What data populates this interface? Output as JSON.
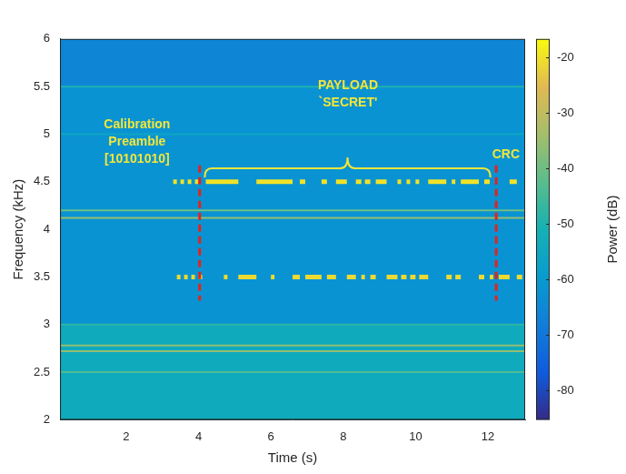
{
  "chart_data": {
    "type": "spectrogram",
    "x_label": "Time (s)",
    "y_label": "Frequency (kHz)",
    "xlim": [
      0.17,
      13.03
    ],
    "xticks": [
      2,
      4,
      6,
      8,
      10,
      12
    ],
    "ylim": [
      2,
      6
    ],
    "yticks": [
      2,
      2.5,
      3,
      3.5,
      4,
      4.5,
      5,
      5.5,
      6
    ],
    "grid": false,
    "colorbar": {
      "label": "Power (dB)",
      "range": [
        -85.3,
        -16.7
      ],
      "ticks": [
        -80,
        -70,
        -60,
        -50,
        -40,
        -30,
        -20
      ]
    },
    "background": [
      {
        "from": 2,
        "to": 3,
        "power": -54
      },
      {
        "from": 3,
        "to": 5.5,
        "power": -62
      },
      {
        "from": 5.5,
        "to": 6,
        "power": -66
      }
    ],
    "tones": [
      {
        "frequency": 5.5,
        "power": -50,
        "segments": [
          [
            0.17,
            13.03
          ]
        ]
      },
      {
        "frequency": 5.0,
        "power": -56,
        "segments": [
          [
            0.17,
            13.03
          ]
        ]
      },
      {
        "frequency": 4.2,
        "power": -40,
        "segments": [
          [
            0.17,
            13.03
          ]
        ]
      },
      {
        "frequency": 4.12,
        "power": -36,
        "segments": [
          [
            0.17,
            13.03
          ]
        ]
      },
      {
        "frequency": 3.0,
        "power": -48,
        "segments": [
          [
            0.17,
            13.03
          ]
        ]
      },
      {
        "frequency": 2.78,
        "power": -36,
        "segments": [
          [
            0.17,
            13.03
          ]
        ]
      },
      {
        "frequency": 2.72,
        "power": -36,
        "segments": [
          [
            0.17,
            13.03
          ]
        ]
      },
      {
        "frequency": 2.5,
        "power": -44,
        "segments": [
          [
            0.17,
            13.03
          ]
        ]
      },
      {
        "frequency": 4.5,
        "power": -20,
        "segments": [
          [
            3.3,
            3.4
          ],
          [
            3.5,
            3.6
          ],
          [
            3.7,
            3.8
          ],
          [
            3.9,
            4.0
          ],
          [
            4.2,
            5.1
          ],
          [
            5.6,
            6.6
          ],
          [
            6.8,
            6.95
          ],
          [
            7.4,
            7.55
          ],
          [
            7.8,
            8.1
          ],
          [
            8.35,
            8.5
          ],
          [
            8.6,
            8.75
          ],
          [
            8.9,
            9.2
          ],
          [
            9.5,
            9.6
          ],
          [
            9.75,
            9.85
          ],
          [
            10.0,
            10.1
          ],
          [
            10.35,
            10.85
          ],
          [
            11.0,
            11.1
          ],
          [
            11.25,
            11.75
          ],
          [
            11.9,
            12.05
          ],
          [
            12.6,
            12.8
          ]
        ]
      },
      {
        "frequency": 3.5,
        "power": -21,
        "segments": [
          [
            3.4,
            3.5
          ],
          [
            3.6,
            3.7
          ],
          [
            3.8,
            3.9
          ],
          [
            4.0,
            4.1
          ],
          [
            4.7,
            4.8
          ],
          [
            5.1,
            5.6
          ],
          [
            6.0,
            6.1
          ],
          [
            6.6,
            6.8
          ],
          [
            6.95,
            7.4
          ],
          [
            7.55,
            7.8
          ],
          [
            8.1,
            8.35
          ],
          [
            8.5,
            8.6
          ],
          [
            8.75,
            8.9
          ],
          [
            9.2,
            9.5
          ],
          [
            9.6,
            9.75
          ],
          [
            9.85,
            10.0
          ],
          [
            10.1,
            10.35
          ],
          [
            10.85,
            11.0
          ],
          [
            11.1,
            11.25
          ],
          [
            11.75,
            11.9
          ],
          [
            12.05,
            12.15
          ],
          [
            12.3,
            12.6
          ],
          [
            12.8,
            12.95
          ]
        ]
      }
    ],
    "boundaries": {
      "x": [
        4.03,
        12.23
      ],
      "color": "#e3231c",
      "line_style": "dashed"
    },
    "annotations": [
      {
        "lines": [
          "Calibration",
          "Preamble",
          "[10101010]"
        ],
        "x": 2.3,
        "y": 5.1,
        "color": "#f2e639"
      },
      {
        "lines": [
          "PAYLOAD",
          "`SECRET'"
        ],
        "x": 8.13,
        "y": 5.51,
        "color": "#f2e639",
        "span": [
          4.17,
          12.07
        ]
      },
      {
        "lines": [
          "CRC"
        ],
        "x": 12.5,
        "y": 4.78,
        "color": "#f2e639"
      }
    ]
  }
}
